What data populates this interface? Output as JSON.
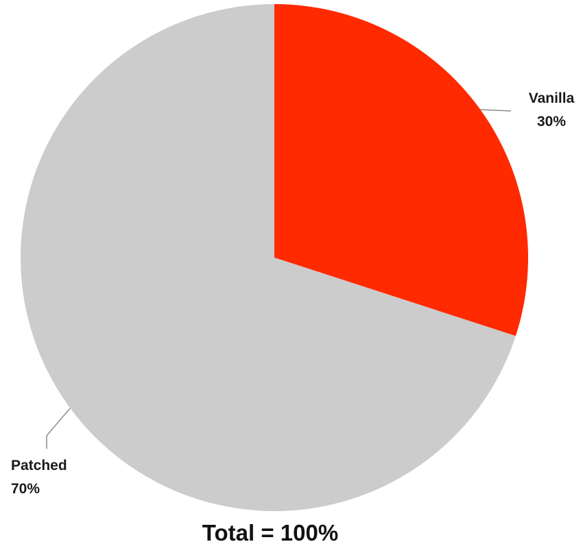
{
  "chart_data": {
    "type": "pie",
    "slices": [
      {
        "label": "Vanilla",
        "value": 30,
        "value_label": "30%",
        "color": "#ff2a00"
      },
      {
        "label": "Patched",
        "value": 70,
        "value_label": "70%",
        "color": "#cccccc"
      }
    ],
    "start": "top",
    "direction": "clockwise",
    "total_label": "Total = 100%"
  }
}
